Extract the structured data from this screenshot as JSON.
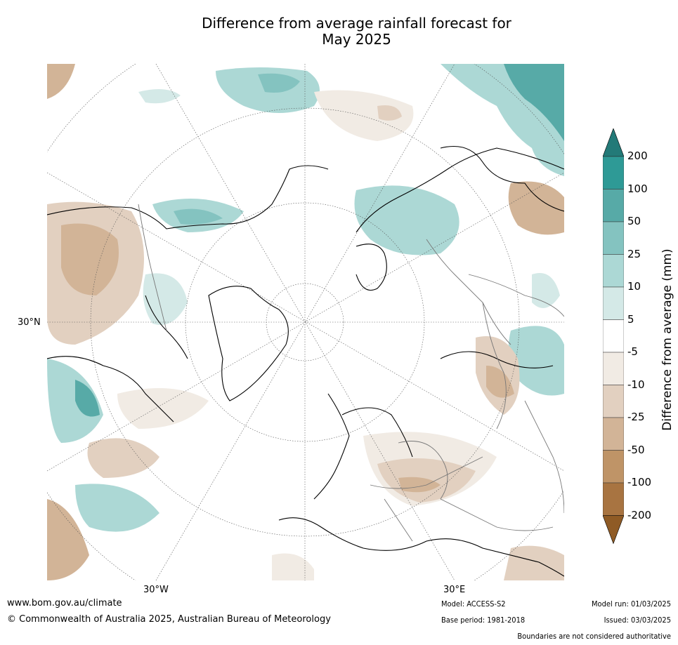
{
  "title_line1": "Difference from average rainfall forecast for",
  "title_line2": "May 2025",
  "axis_labels": {
    "lat_30n": "30°N",
    "lon_30w": "30°W",
    "lon_30e": "30°E"
  },
  "colorbar": {
    "title": "Difference from average (mm)",
    "ticks": [
      "200",
      "100",
      "50",
      "25",
      "10",
      "5",
      "-5",
      "-10",
      "-25",
      "-50",
      "-100",
      "-200"
    ],
    "colors": {
      "over": "#237a78",
      "bands": [
        "#2e9a96",
        "#57aaa7",
        "#84c3c0",
        "#acd8d5",
        "#d4e9e7",
        "#ffffff",
        "#f1ebe4",
        "#e2d0c0",
        "#d2b497",
        "#bf9467",
        "#a87441"
      ],
      "under": "#8f5b25"
    }
  },
  "footer": {
    "website": "www.bom.gov.au/climate",
    "copyright": "© Commonwealth of Australia 2025, Australian Bureau of Meteorology",
    "model": "Model: ACCESS-S2",
    "base_period": "Base period: 1981-2018",
    "model_run": "Model run: 01/03/2025",
    "issued": "Issued: 03/03/2025",
    "disclaimer": "Boundaries are not considered authoritative"
  }
}
